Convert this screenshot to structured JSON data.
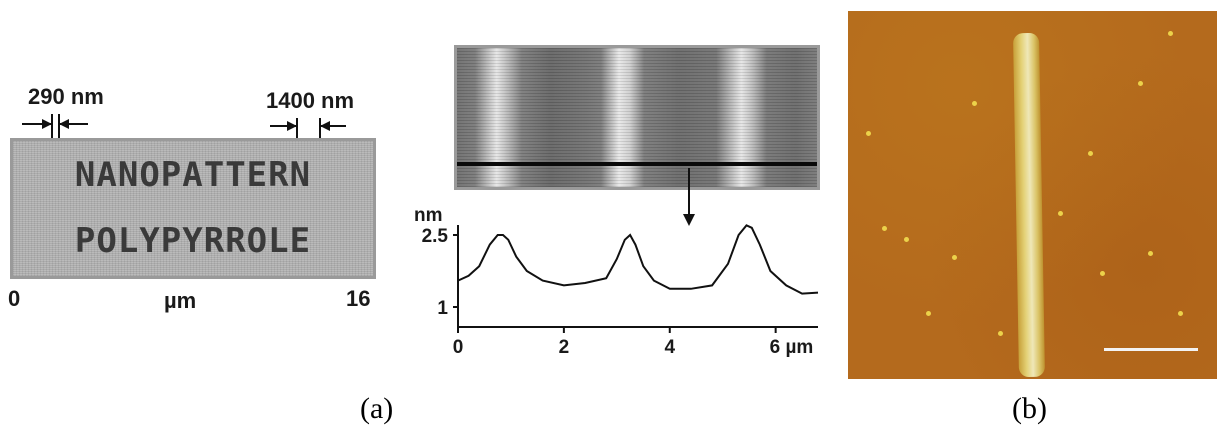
{
  "panel_a": {
    "left_image": {
      "dim_small": "290 nm",
      "dim_large": "1400 nm",
      "line1": "NANOPATTERN",
      "line2": "POLYPYRROLE",
      "axis_start": "0",
      "axis_unit": "µm",
      "axis_end": "16"
    },
    "profile": {
      "y_unit": "nm",
      "y_tick_high": "2.5",
      "y_tick_low": "1",
      "x_ticks": [
        "0",
        "2",
        "4",
        "6 µm"
      ]
    },
    "caption": "(a)"
  },
  "panel_b": {
    "caption": "(b)"
  },
  "chart_data": {
    "type": "line",
    "ylabel": "nm",
    "xlim": [
      0,
      6.8
    ],
    "ylim": [
      1,
      2.5
    ],
    "x_ticks": [
      0,
      2,
      4,
      6
    ],
    "y_ticks": [
      1,
      2.5
    ],
    "series": [
      {
        "x": [
          0,
          0.2,
          0.4,
          0.6,
          0.75,
          0.85,
          0.95,
          1.1,
          1.3,
          1.6,
          2.0,
          2.4,
          2.8,
          3.0,
          3.15,
          3.25,
          3.35,
          3.5,
          3.7,
          4.0,
          4.4,
          4.8,
          5.1,
          5.3,
          5.45,
          5.55,
          5.7,
          5.9,
          6.2,
          6.5,
          6.8
        ],
        "y": [
          1.55,
          1.65,
          1.85,
          2.3,
          2.5,
          2.5,
          2.4,
          2.05,
          1.75,
          1.55,
          1.45,
          1.5,
          1.6,
          2.0,
          2.4,
          2.5,
          2.3,
          1.85,
          1.55,
          1.38,
          1.38,
          1.45,
          1.9,
          2.5,
          2.7,
          2.65,
          2.3,
          1.75,
          1.45,
          1.28,
          1.3
        ]
      }
    ]
  }
}
